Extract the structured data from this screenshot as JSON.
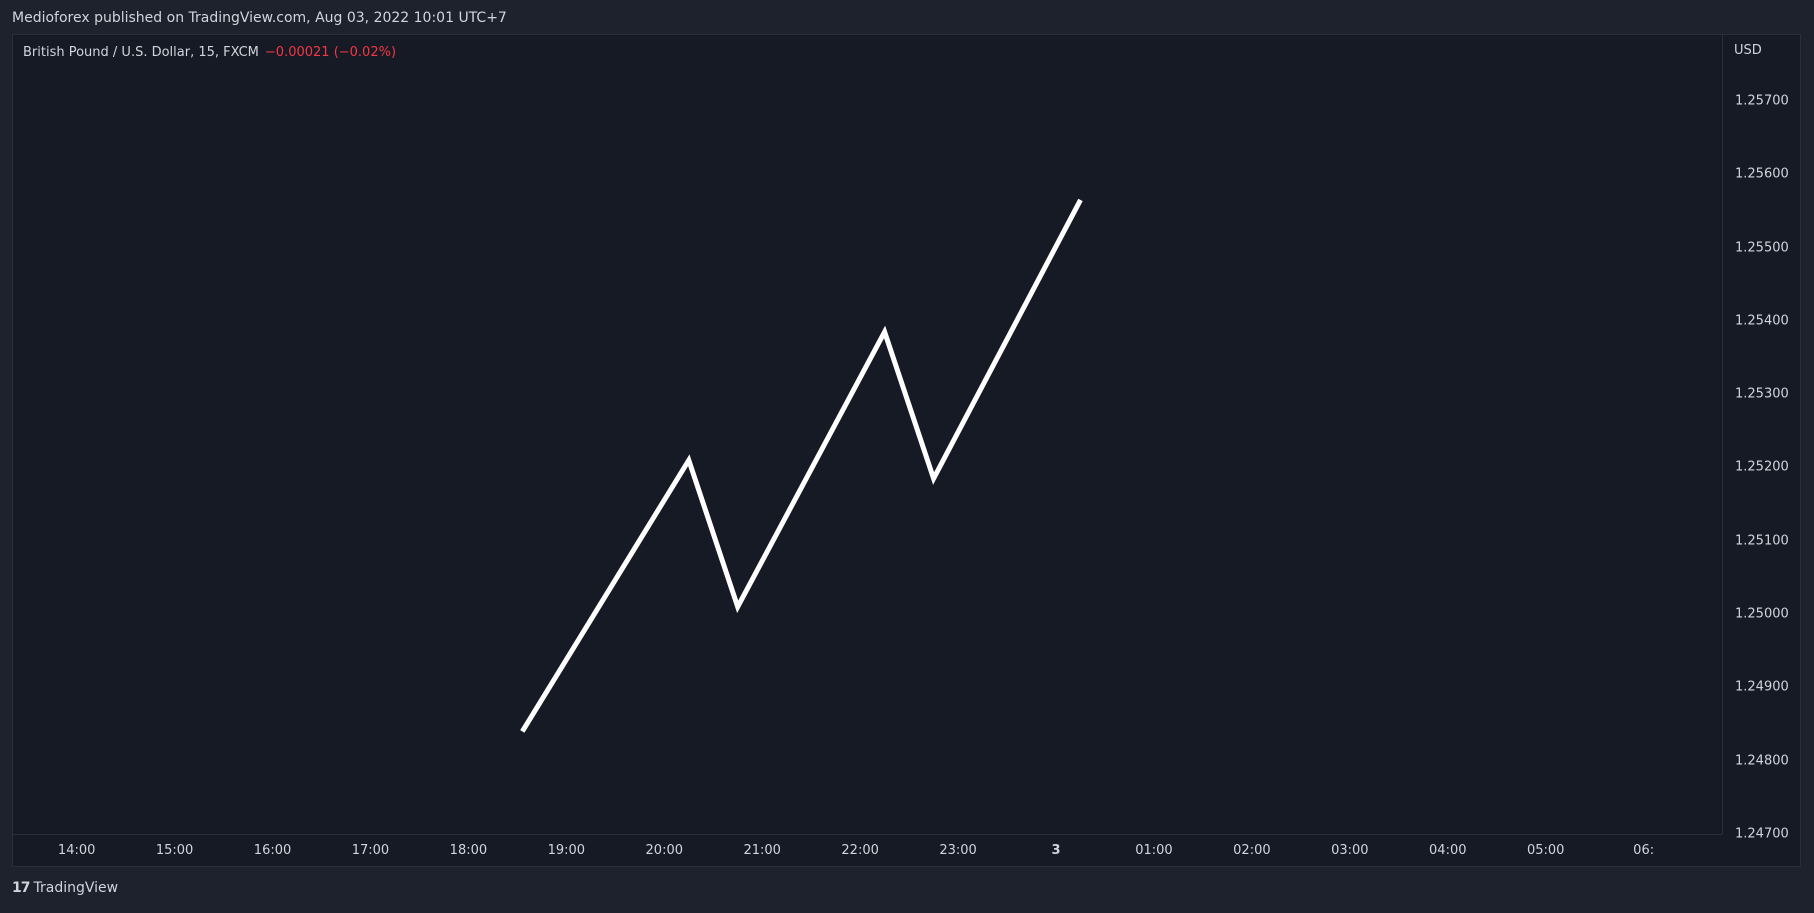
{
  "header": {
    "published": "Medioforex published on TradingView.com, Aug 03, 2022 10:01 UTC+7"
  },
  "legend": {
    "symbol": "British Pound / U.S. Dollar, 15, FXCM",
    "change": "−0.00021 (−0.02%)"
  },
  "price_scale": {
    "currency": "USD"
  },
  "footer": {
    "logo_mark": "17",
    "brand": "TradingView"
  },
  "colors": {
    "background": "#161a25",
    "line": "#ffffff",
    "change_negative": "#f23645"
  },
  "chart_data": {
    "type": "line",
    "y_ticks": [
      "1.25700",
      "1.25600",
      "1.25500",
      "1.25400",
      "1.25300",
      "1.25200",
      "1.25100",
      "1.25000",
      "1.24900",
      "1.24800",
      "1.24700"
    ],
    "ylim": [
      1.247,
      1.2579
    ],
    "x_ticks": [
      "14:00",
      "15:00",
      "16:00",
      "17:00",
      "18:00",
      "19:00",
      "20:00",
      "21:00",
      "22:00",
      "23:00",
      "3",
      "01:00",
      "02:00",
      "03:00",
      "04:00",
      "05:00",
      "06:"
    ],
    "x_tick_hours": [
      14,
      15,
      16,
      17,
      18,
      19,
      20,
      21,
      22,
      23,
      24,
      25,
      26,
      27,
      28,
      29,
      30
    ],
    "xlim": [
      13.35,
      30.8
    ],
    "series": [
      {
        "x": [
          18.55,
          20.25,
          20.75,
          22.25,
          22.75,
          24.25
        ],
        "y": [
          1.2484,
          1.2521,
          1.2501,
          1.25385,
          1.25185,
          1.25565
        ]
      }
    ],
    "grid": false
  }
}
